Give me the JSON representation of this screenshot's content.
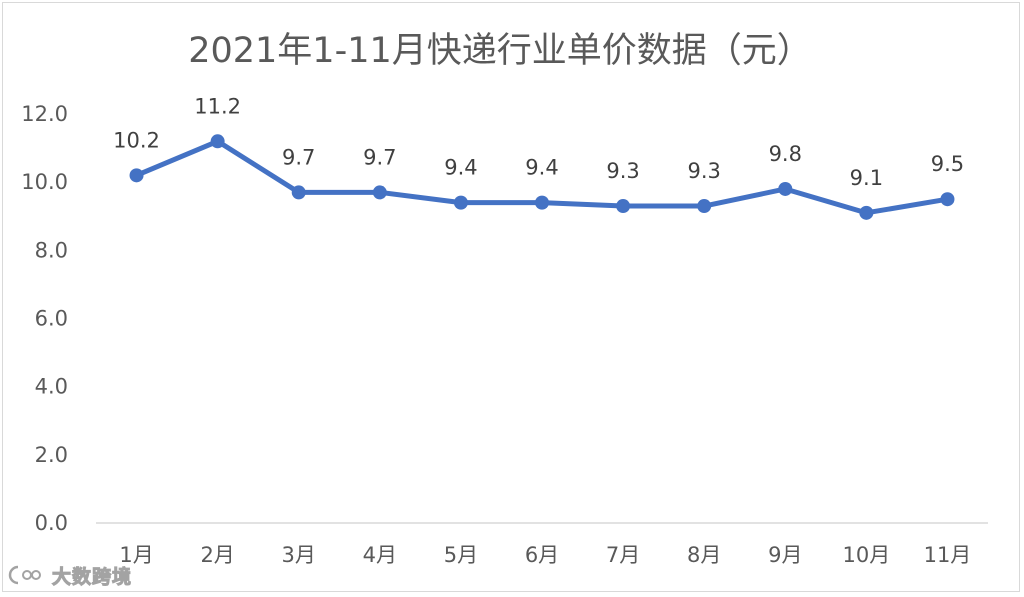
{
  "chart_data": {
    "type": "line",
    "title": "2021年1-11月快递行业单价数据（元）",
    "categories": [
      "1月",
      "2月",
      "3月",
      "4月",
      "5月",
      "6月",
      "7月",
      "8月",
      "9月",
      "10月",
      "11月"
    ],
    "series": [
      {
        "values": [
          10.2,
          11.2,
          9.7,
          9.7,
          9.4,
          9.4,
          9.3,
          9.3,
          9.8,
          9.1,
          9.5
        ],
        "color": "#4472c4"
      }
    ],
    "ylim": [
      0,
      12
    ],
    "yticks": [
      "0.0",
      "2.0",
      "4.0",
      "6.0",
      "8.0",
      "10.0",
      "12.0"
    ],
    "data_labels": [
      "10.2",
      "11.2",
      "9.7",
      "9.7",
      "9.4",
      "9.4",
      "9.3",
      "9.3",
      "9.8",
      "9.1",
      "9.5"
    ],
    "grid": false,
    "legend": "none"
  },
  "watermark": {
    "text": "大数跨境",
    "icon": "logo-icon"
  }
}
